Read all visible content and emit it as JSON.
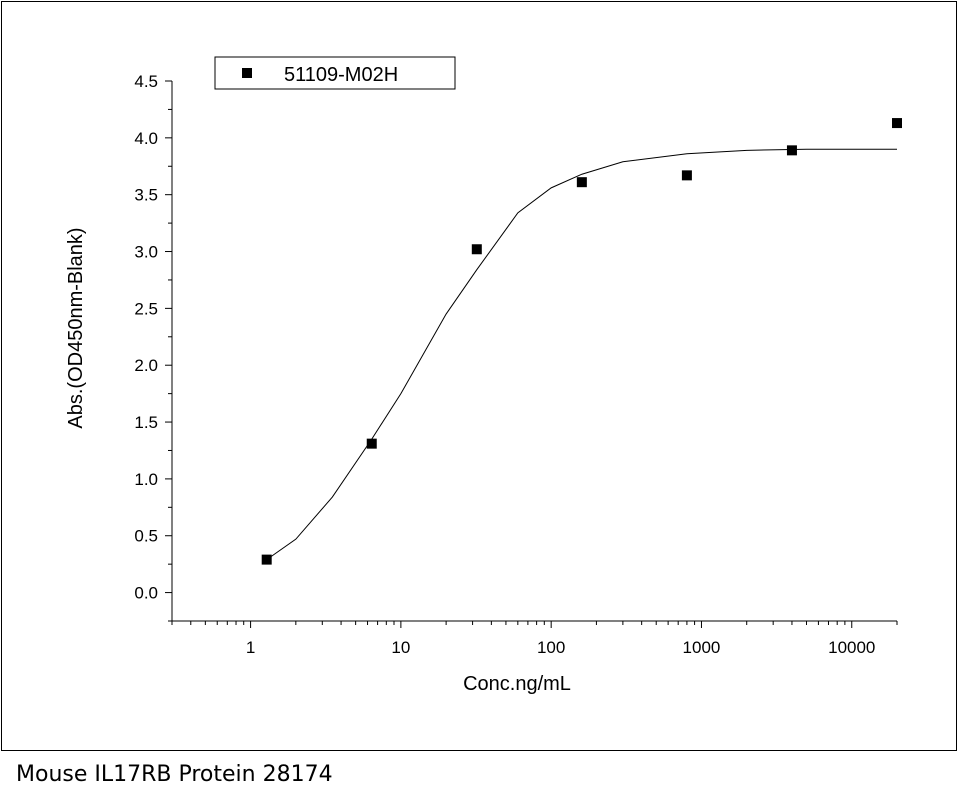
{
  "caption": "Mouse IL17RB Protein 28174",
  "chart_data": {
    "type": "scatter",
    "xlabel": "Conc.ng/mL",
    "ylabel": "Abs.(OD450nm-Blank)",
    "xscale": "log",
    "xlim": [
      0.3,
      20000
    ],
    "ylim": [
      -0.25,
      4.5
    ],
    "x_ticks": [
      1,
      10,
      100,
      1000,
      10000
    ],
    "x_tick_labels": [
      "1",
      "10",
      "100",
      "1000",
      "10000"
    ],
    "y_ticks": [
      0.0,
      0.5,
      1.0,
      1.5,
      2.0,
      2.5,
      3.0,
      3.5,
      4.0,
      4.5
    ],
    "y_tick_labels": [
      "0.0",
      "0.5",
      "1.0",
      "1.5",
      "2.0",
      "2.5",
      "3.0",
      "3.5",
      "4.0",
      "4.5"
    ],
    "legend_placement": "top-left",
    "series": [
      {
        "name": "51109-M02H",
        "marker": "square",
        "color": "#000000",
        "x": [
          1.28,
          6.4,
          32,
          160,
          800,
          4000,
          20000
        ],
        "y": [
          0.29,
          1.31,
          3.02,
          3.61,
          3.67,
          3.89,
          4.13
        ]
      }
    ],
    "fit_curve": {
      "color": "#000000",
      "x": [
        1.28,
        2,
        3.5,
        6.4,
        10,
        20,
        32,
        60,
        100,
        160,
        300,
        800,
        2000,
        5000,
        20000
      ],
      "y": [
        0.29,
        0.47,
        0.84,
        1.35,
        1.75,
        2.45,
        2.84,
        3.34,
        3.56,
        3.68,
        3.79,
        3.86,
        3.89,
        3.9,
        3.9
      ]
    }
  }
}
